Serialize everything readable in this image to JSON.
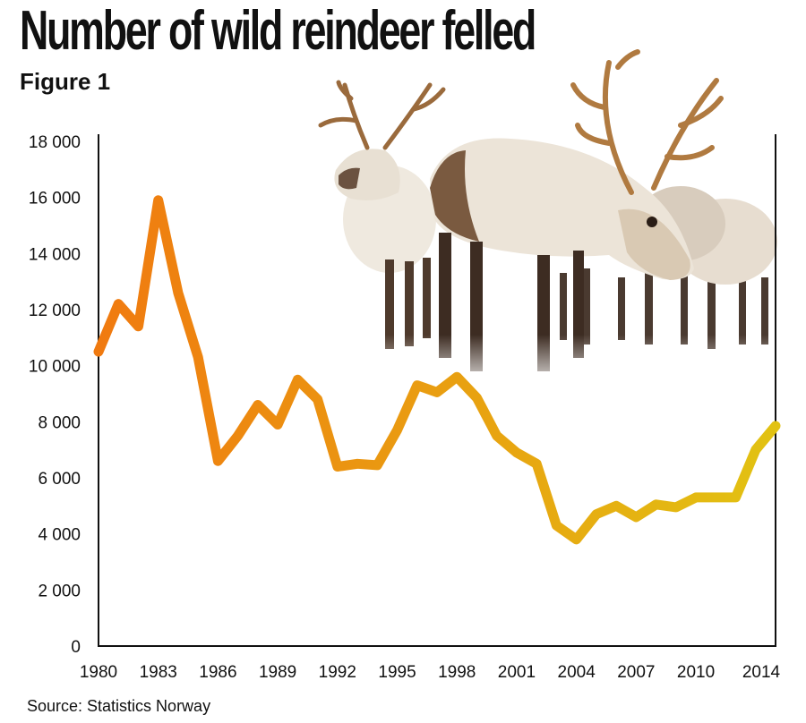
{
  "header": {
    "title": "Number of wild reindeer felled",
    "subtitle": "Figure 1"
  },
  "footer": {
    "source": "Source: Statistics Norway"
  },
  "picture": {
    "subject": "reindeer-herd-in-snow"
  },
  "chart_data": {
    "type": "line",
    "title": "Number of wild reindeer felled",
    "xlabel": "",
    "ylabel": "",
    "x": [
      1980,
      1981,
      1982,
      1983,
      1984,
      1985,
      1986,
      1987,
      1988,
      1989,
      1990,
      1991,
      1992,
      1993,
      1994,
      1995,
      1996,
      1997,
      1998,
      1999,
      2000,
      2001,
      2002,
      2003,
      2004,
      2005,
      2006,
      2007,
      2008,
      2009,
      2010,
      2011,
      2012,
      2013,
      2014
    ],
    "series": [
      {
        "values": [
          10500,
          12200,
          11400,
          15900,
          12600,
          10300,
          6600,
          7500,
          8600,
          7900,
          9500,
          8800,
          6400,
          6500,
          6450,
          7700,
          9300,
          9050,
          9600,
          8850,
          7500,
          6900,
          6500,
          4300,
          3800,
          4700,
          5000,
          4600,
          5050,
          4950,
          5300,
          5300,
          5300,
          7000,
          7850
        ]
      }
    ],
    "xticks": [
      "1980",
      "1983",
      "1986",
      "1989",
      "1992",
      "1995",
      "1998",
      "2001",
      "2004",
      "2007",
      "2010",
      "2014"
    ],
    "yticks": [
      "0",
      "2 000",
      "4 000",
      "6 000",
      "8 000",
      "10 000",
      "12 000",
      "14 000",
      "16 000",
      "18 000"
    ],
    "ylim": [
      0,
      18000
    ],
    "xlim": [
      1980,
      2014
    ],
    "grid": false,
    "legend": "none",
    "colors": {
      "start": "#F07A10",
      "end": "#E2C212",
      "axis": "#111111"
    }
  }
}
